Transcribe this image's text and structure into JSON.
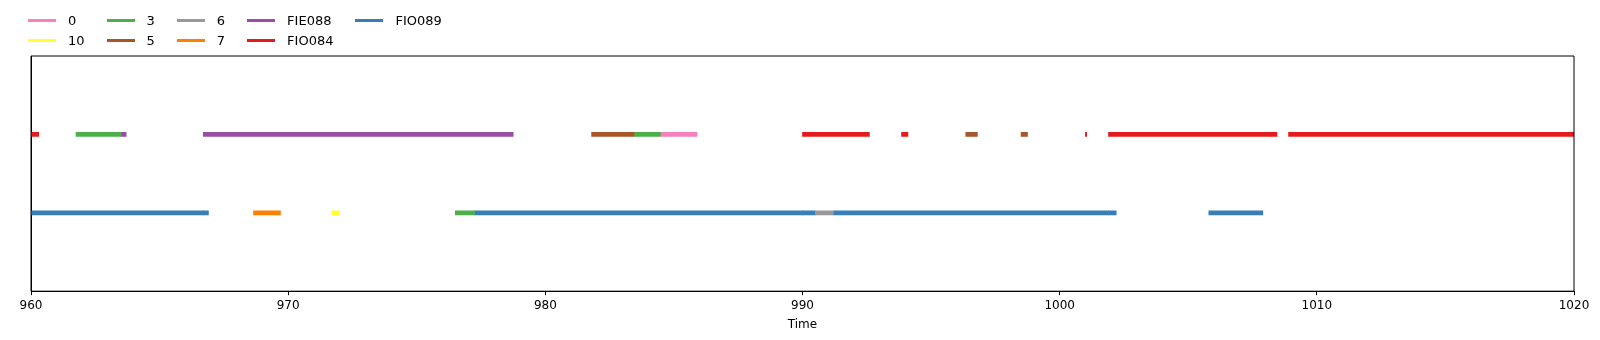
{
  "chart_data": {
    "type": "bar",
    "orientation": "horizontal",
    "categories": [
      null,
      null
    ],
    "xlabel": "Time",
    "xlim": [
      960,
      1020
    ],
    "xticks": [
      960,
      970,
      980,
      990,
      1000,
      1010,
      1020
    ],
    "grid": false,
    "legend": "top left",
    "tick_labels": "x",
    "series": [
      {
        "name": "0",
        "color": "#f781bf",
        "base": [
          984.5,
          null
        ],
        "values": [
          1.4,
          null
        ]
      },
      {
        "name": "10",
        "color": "#ffff33",
        "base": [
          null,
          971.7
        ],
        "values": [
          null,
          0.3
        ]
      },
      {
        "name": "3",
        "color": "#4daf4a",
        "base": [
          961.75,
          null
        ],
        "values": [
          1.75,
          null
        ]
      },
      {
        "name": "5",
        "color": "#a65628",
        "base": [
          981.8,
          null
        ],
        "values": [
          1.65,
          null
        ]
      },
      {
        "name": "6",
        "color": "#999999",
        "base": [
          null,
          990.5
        ],
        "values": [
          null,
          0.7
        ]
      },
      {
        "name": "7",
        "color": "#ff7f00",
        "base": [
          null,
          968.65
        ],
        "values": [
          null,
          1.05
        ]
      },
      {
        "name": "FIE088",
        "color": "#984ea3",
        "base": [
          966.7,
          null
        ],
        "values": [
          12.05,
          null
        ]
      },
      {
        "name": "FIO084",
        "color": "#e41a1c",
        "base": [
          960,
          null
        ],
        "values": [
          0.3,
          null
        ]
      },
      {
        "name": "FIO089",
        "color": "#377eb8",
        "base": [
          null,
          960
        ],
        "values": [
          null,
          6.7
        ]
      },
      {
        "color": "#4daf4a",
        "base": [
          983.45,
          null
        ],
        "values": [
          1.05,
          null
        ]
      },
      {
        "color": "#4daf4a",
        "base": [
          null,
          976.5
        ],
        "values": [
          null,
          0.75
        ]
      },
      {
        "color": "#a65628",
        "base": [
          996.35,
          null
        ],
        "values": [
          0.45,
          null
        ]
      },
      {
        "color": "#a65628",
        "base": [
          998.5,
          null
        ],
        "values": [
          0.25,
          null
        ]
      },
      {
        "color": "#984ea3",
        "base": [
          963.5,
          null
        ],
        "values": [
          0.2,
          null
        ]
      },
      {
        "color": "#e41a1c",
        "base": [
          990,
          null
        ],
        "values": [
          2.6,
          null
        ]
      },
      {
        "color": "#e41a1c",
        "base": [
          993.85,
          null
        ],
        "values": [
          0.25,
          null
        ]
      },
      {
        "color": "#e41a1c",
        "base": [
          1001,
          null
        ],
        "values": [
          0.05,
          null
        ]
      },
      {
        "color": "#e41a1c",
        "base": [
          1001.9,
          null
        ],
        "values": [
          6.3,
          null
        ]
      },
      {
        "color": "#e41a1c",
        "base": [
          1008.2,
          null
        ],
        "values": [
          0.25,
          null
        ]
      },
      {
        "color": "#e41a1c",
        "base": [
          1008.9,
          null
        ],
        "values": [
          11.1,
          null
        ]
      },
      {
        "color": "#377eb8",
        "base": [
          null,
          966.7
        ],
        "values": [
          null,
          0.2
        ]
      },
      {
        "color": "#377eb8",
        "base": [
          null,
          977.25
        ],
        "values": [
          null,
          12.75
        ]
      },
      {
        "color": "#377eb8",
        "base": [
          null,
          990
        ],
        "values": [
          null,
          0.5
        ]
      },
      {
        "color": "#377eb8",
        "base": [
          null,
          991.2
        ],
        "values": [
          null,
          10.7
        ]
      },
      {
        "color": "#377eb8",
        "base": [
          null,
          1001.9
        ],
        "values": [
          null,
          0.3
        ]
      },
      {
        "color": "#377eb8",
        "base": [
          null,
          1005.8
        ],
        "values": [
          null,
          2.1
        ]
      }
    ]
  }
}
